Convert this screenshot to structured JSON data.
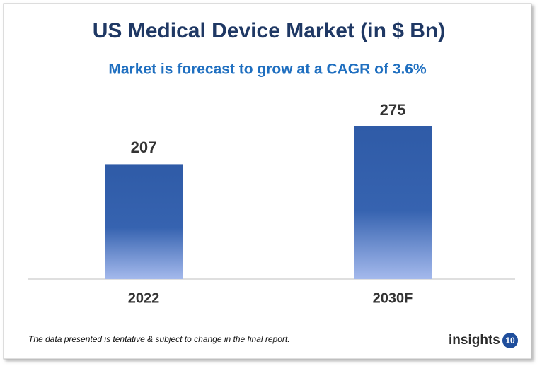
{
  "chart_data": {
    "type": "bar",
    "title": "US Medical Device Market (in $ Bn)",
    "subtitle": "Market is forecast to grow at a CAGR of 3.6%",
    "categories": [
      "2022",
      "2030F"
    ],
    "values": [
      207,
      275
    ],
    "color": "#2f5ba7",
    "footnote": "The data presented is tentative & subject to change in the final report.",
    "logo": {
      "text": "insights",
      "badge": "10"
    }
  }
}
